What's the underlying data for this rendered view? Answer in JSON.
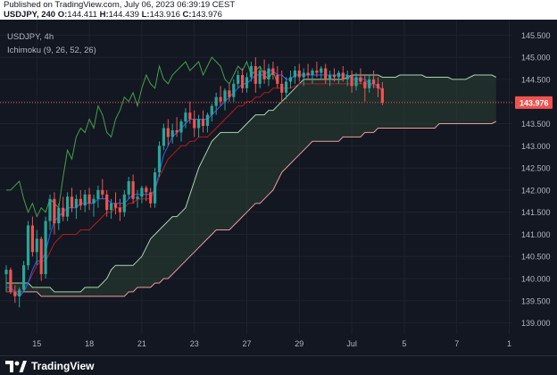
{
  "header": {
    "published": "Published on TradingView.com, July 06, 2023 06:39:19 CEST",
    "symbol": "USDJPY, 240",
    "o_label": "O:",
    "o": "144.411",
    "h_label": "H:",
    "h": "144.439",
    "l_label": "L:",
    "l": "143.916",
    "c_label": "C:",
    "c": "143.976"
  },
  "legend": {
    "symbol_interval": "USDJPY, 4h",
    "indicator": "Ichimoku (9, 26, 52, 26)"
  },
  "brand": {
    "name": "TradingView"
  },
  "colors": {
    "background": "#131722",
    "up": "#26a69a",
    "down": "#ef5350",
    "conversion": "#2962ff",
    "base": "#b71c1c",
    "lagging": "#43a047",
    "span_a": "#a5d6a7",
    "span_b": "#ef9a9a",
    "price_tag": "#ef5350"
  },
  "chart_data": {
    "type": "candlestick",
    "title": "USDJPY, 4h",
    "last_price": "143.976",
    "y_ticks": [
      "145.500",
      "145.000",
      "144.500",
      "144.000",
      "143.500",
      "143.000",
      "142.500",
      "142.000",
      "141.500",
      "141.000",
      "140.500",
      "140.000",
      "139.500",
      "139.000"
    ],
    "ylim": [
      138.75,
      145.85
    ],
    "x_ticks": [
      {
        "label": "15",
        "bar": 7
      },
      {
        "label": "18",
        "bar": 19
      },
      {
        "label": "21",
        "bar": 31
      },
      {
        "label": "23",
        "bar": 43
      },
      {
        "label": "27",
        "bar": 55
      },
      {
        "label": "29",
        "bar": 67
      },
      {
        "label": "Jul",
        "bar": 79
      },
      {
        "label": "5",
        "bar": 91
      },
      {
        "label": "7",
        "bar": 103
      },
      {
        "label": "1",
        "bar": 115
      }
    ],
    "grid": true,
    "candles": [
      [
        140.1,
        140.3,
        139.7,
        140.2
      ],
      [
        140.2,
        140.25,
        139.65,
        139.7
      ],
      [
        139.7,
        139.85,
        139.45,
        139.6
      ],
      [
        139.6,
        139.8,
        139.35,
        139.75
      ],
      [
        139.75,
        140.4,
        139.7,
        140.3
      ],
      [
        140.3,
        141.3,
        140.2,
        141.2
      ],
      [
        141.2,
        141.4,
        140.5,
        140.6
      ],
      [
        140.6,
        141.1,
        140.3,
        140.9
      ],
      [
        140.9,
        140.95,
        139.95,
        140.1
      ],
      [
        140.1,
        141.4,
        140.0,
        141.3
      ],
      [
        141.3,
        141.9,
        141.1,
        141.8
      ],
      [
        141.8,
        141.95,
        141.0,
        141.25
      ],
      [
        141.25,
        141.7,
        141.1,
        141.6
      ],
      [
        141.6,
        141.85,
        141.3,
        141.4
      ],
      [
        141.4,
        141.95,
        141.3,
        141.85
      ],
      [
        141.85,
        142.05,
        141.5,
        141.6
      ],
      [
        141.6,
        141.9,
        141.35,
        141.8
      ],
      [
        141.8,
        142.0,
        141.55,
        141.65
      ],
      [
        141.65,
        142.0,
        141.5,
        141.9
      ],
      [
        141.9,
        142.05,
        141.55,
        141.7
      ],
      [
        141.7,
        141.9,
        141.4,
        141.8
      ],
      [
        141.8,
        142.1,
        141.6,
        142.0
      ],
      [
        142.0,
        142.25,
        141.8,
        141.9
      ],
      [
        141.9,
        142.0,
        141.4,
        141.55
      ],
      [
        141.55,
        141.8,
        141.35,
        141.7
      ],
      [
        141.7,
        141.95,
        141.45,
        141.6
      ],
      [
        141.6,
        141.8,
        141.3,
        141.5
      ],
      [
        141.5,
        142.0,
        141.4,
        141.9
      ],
      [
        141.9,
        142.3,
        141.8,
        142.2
      ],
      [
        142.2,
        142.35,
        141.7,
        141.8
      ],
      [
        141.8,
        142.0,
        141.6,
        141.85
      ],
      [
        141.85,
        142.1,
        141.7,
        142.05
      ],
      [
        142.05,
        142.1,
        141.75,
        141.95
      ],
      [
        141.95,
        142.05,
        141.6,
        141.7
      ],
      [
        141.7,
        142.5,
        141.6,
        142.4
      ],
      [
        142.4,
        143.1,
        142.3,
        143.0
      ],
      [
        143.0,
        143.5,
        142.9,
        143.4
      ],
      [
        143.4,
        143.6,
        143.0,
        143.2
      ],
      [
        143.2,
        143.5,
        143.05,
        143.35
      ],
      [
        143.35,
        143.65,
        143.2,
        143.3
      ],
      [
        143.3,
        143.6,
        143.1,
        143.55
      ],
      [
        143.55,
        143.85,
        143.4,
        143.75
      ],
      [
        143.75,
        144.0,
        143.5,
        143.6
      ],
      [
        143.6,
        143.8,
        143.2,
        143.4
      ],
      [
        143.4,
        143.7,
        143.2,
        143.6
      ],
      [
        143.6,
        143.8,
        143.3,
        143.45
      ],
      [
        143.45,
        143.75,
        143.3,
        143.7
      ],
      [
        143.7,
        143.95,
        143.55,
        143.9
      ],
      [
        143.9,
        144.2,
        143.7,
        144.1
      ],
      [
        144.1,
        144.35,
        143.9,
        144.0
      ],
      [
        144.0,
        144.3,
        143.8,
        144.25
      ],
      [
        144.25,
        144.4,
        144.0,
        144.1
      ],
      [
        144.1,
        144.5,
        144.0,
        144.4
      ],
      [
        144.4,
        144.7,
        144.3,
        144.6
      ],
      [
        144.6,
        144.75,
        144.2,
        144.3
      ],
      [
        144.3,
        144.65,
        144.2,
        144.55
      ],
      [
        144.55,
        144.9,
        144.45,
        144.8
      ],
      [
        144.8,
        145.0,
        144.2,
        144.4
      ],
      [
        144.4,
        144.8,
        144.3,
        144.7
      ],
      [
        144.7,
        144.95,
        144.4,
        144.5
      ],
      [
        144.5,
        144.85,
        144.35,
        144.75
      ],
      [
        144.75,
        144.9,
        144.5,
        144.6
      ],
      [
        144.6,
        144.8,
        144.3,
        144.4
      ],
      [
        144.4,
        144.7,
        144.0,
        144.2
      ],
      [
        144.2,
        144.55,
        144.05,
        144.45
      ],
      [
        144.45,
        144.7,
        144.3,
        144.55
      ],
      [
        144.55,
        144.8,
        144.4,
        144.7
      ],
      [
        144.7,
        144.85,
        144.45,
        144.55
      ],
      [
        144.55,
        144.75,
        144.35,
        144.65
      ],
      [
        144.65,
        144.85,
        144.5,
        144.6
      ],
      [
        144.6,
        144.75,
        144.4,
        144.7
      ],
      [
        144.7,
        144.9,
        144.55,
        144.65
      ],
      [
        144.65,
        144.8,
        144.5,
        144.75
      ],
      [
        144.75,
        144.85,
        144.4,
        144.5
      ],
      [
        144.5,
        144.7,
        144.35,
        144.6
      ],
      [
        144.6,
        144.75,
        144.45,
        144.55
      ],
      [
        144.55,
        144.7,
        144.4,
        144.65
      ],
      [
        144.65,
        144.8,
        144.45,
        144.5
      ],
      [
        144.5,
        144.7,
        144.35,
        144.6
      ],
      [
        144.6,
        144.7,
        144.2,
        144.35
      ],
      [
        144.35,
        144.65,
        144.25,
        144.55
      ],
      [
        144.55,
        144.75,
        144.4,
        144.45
      ],
      [
        144.45,
        144.6,
        144.0,
        144.3
      ],
      [
        144.3,
        144.6,
        144.2,
        144.5
      ],
      [
        144.5,
        144.7,
        144.3,
        144.4
      ],
      [
        144.4,
        144.55,
        144.1,
        144.3
      ],
      [
        144.3,
        144.439,
        143.916,
        143.976
      ]
    ],
    "series": [
      {
        "name": "conversion",
        "start": 0,
        "values": [
          139.8,
          139.8,
          139.7,
          139.6,
          139.7,
          139.9,
          140.2,
          140.4,
          140.4,
          140.6,
          141.0,
          141.3,
          141.4,
          141.5,
          141.6,
          141.6,
          141.6,
          141.7,
          141.7,
          141.7,
          141.7,
          141.8,
          141.8,
          141.8,
          141.7,
          141.7,
          141.7,
          141.7,
          141.8,
          141.9,
          141.9,
          141.9,
          141.9,
          141.9,
          142.0,
          142.4,
          142.8,
          143.0,
          143.2,
          143.3,
          143.4,
          143.5,
          143.6,
          143.6,
          143.6,
          143.6,
          143.6,
          143.7,
          143.8,
          143.9,
          144.0,
          144.1,
          144.2,
          144.3,
          144.4,
          144.4,
          144.5,
          144.6,
          144.6,
          144.6,
          144.7,
          144.7,
          144.6,
          144.6,
          144.5,
          144.5,
          144.6,
          144.6,
          144.6,
          144.6,
          144.6,
          144.6,
          144.6,
          144.6,
          144.6,
          144.6,
          144.6,
          144.6,
          144.6,
          144.5,
          144.5,
          144.5,
          144.5,
          144.4,
          144.4,
          144.35,
          144.25
        ]
      },
      {
        "name": "base",
        "start": 0,
        "values": [
          139.7,
          139.7,
          139.7,
          139.7,
          139.7,
          139.9,
          140.1,
          140.3,
          140.4,
          140.4,
          140.6,
          140.8,
          140.9,
          141.0,
          141.0,
          141.0,
          141.0,
          141.1,
          141.1,
          141.1,
          141.2,
          141.3,
          141.4,
          141.5,
          141.5,
          141.6,
          141.6,
          141.6,
          141.7,
          141.7,
          141.8,
          141.8,
          141.8,
          141.8,
          142.0,
          142.3,
          142.5,
          142.7,
          142.8,
          142.9,
          143.0,
          143.0,
          143.1,
          143.1,
          143.2,
          143.2,
          143.2,
          143.3,
          143.4,
          143.5,
          143.6,
          143.7,
          143.8,
          143.9,
          143.9,
          144.0,
          144.0,
          144.1,
          144.1,
          144.2,
          144.2,
          144.3,
          144.3,
          144.3,
          144.3,
          144.3,
          144.35,
          144.4,
          144.4,
          144.4,
          144.4,
          144.4,
          144.4,
          144.4,
          144.4,
          144.4,
          144.4,
          144.4,
          144.4,
          144.4,
          144.4,
          144.4,
          144.4,
          144.4,
          144.35,
          144.3,
          144.25
        ]
      },
      {
        "name": "lagging",
        "start": 0,
        "values": [
          142.0,
          142.0,
          142.1,
          142.2,
          141.8,
          141.5,
          141.7,
          141.4,
          141.6,
          141.5,
          141.8,
          141.7,
          141.6,
          142.3,
          142.9,
          142.7,
          143.2,
          143.4,
          143.3,
          143.6,
          143.4,
          143.9,
          143.7,
          143.3,
          143.2,
          143.6,
          143.8,
          144.1,
          144.0,
          144.2,
          143.9,
          144.3,
          144.6,
          144.4,
          144.3,
          144.8,
          144.5,
          144.4,
          144.6,
          144.7,
          144.8,
          144.9,
          144.7,
          144.8,
          144.9,
          144.6,
          144.8,
          145.0,
          144.9,
          144.8,
          144.5,
          144.4,
          144.6,
          144.8,
          144.7,
          144.9,
          144.6,
          144.7,
          144.8,
          144.6,
          144.5,
          144.7,
          144.4
        ]
      },
      {
        "name": "span_a",
        "start": 0,
        "values": [
          139.9,
          139.9,
          139.9,
          139.9,
          139.9,
          139.9,
          139.8,
          139.8,
          139.8,
          139.8,
          139.8,
          139.7,
          139.7,
          139.7,
          139.7,
          139.7,
          139.7,
          139.7,
          139.8,
          139.8,
          139.8,
          139.8,
          139.9,
          140.0,
          140.2,
          140.3,
          140.3,
          140.3,
          140.3,
          140.3,
          140.4,
          140.5,
          140.7,
          140.9,
          141.0,
          141.1,
          141.2,
          141.3,
          141.4,
          141.4,
          141.5,
          141.6,
          141.9,
          142.2,
          142.5,
          142.7,
          142.9,
          143.1,
          143.2,
          143.3,
          143.3,
          143.3,
          143.3,
          143.3,
          143.4,
          143.5,
          143.6,
          143.7,
          143.7,
          143.7,
          143.8,
          143.8,
          143.9,
          144.0,
          144.1,
          144.2,
          144.3,
          144.4,
          144.5,
          144.5,
          144.5,
          144.5,
          144.5,
          144.5,
          144.5,
          144.5,
          144.5,
          144.5,
          144.55,
          144.6,
          144.6,
          144.6,
          144.6,
          144.6,
          144.6,
          144.6,
          144.55,
          144.55,
          144.55,
          144.55,
          144.6,
          144.6,
          144.6,
          144.6,
          144.6,
          144.6,
          144.55,
          144.55,
          144.55,
          144.55,
          144.55,
          144.55,
          144.5,
          144.5,
          144.5,
          144.5,
          144.55,
          144.6,
          144.6,
          144.6,
          144.6,
          144.6,
          144.55
        ]
      },
      {
        "name": "span_b",
        "start": 0,
        "values": [
          139.7,
          139.7,
          139.7,
          139.7,
          139.7,
          139.7,
          139.7,
          139.7,
          139.6,
          139.6,
          139.6,
          139.6,
          139.6,
          139.6,
          139.6,
          139.6,
          139.6,
          139.6,
          139.6,
          139.6,
          139.6,
          139.6,
          139.6,
          139.6,
          139.6,
          139.6,
          139.6,
          139.6,
          139.7,
          139.7,
          139.8,
          139.8,
          139.8,
          139.8,
          139.9,
          139.9,
          140.0,
          140.0,
          140.1,
          140.2,
          140.3,
          140.4,
          140.5,
          140.6,
          140.7,
          140.8,
          140.9,
          141.0,
          141.1,
          141.1,
          141.1,
          141.1,
          141.2,
          141.3,
          141.4,
          141.5,
          141.6,
          141.7,
          141.7,
          141.8,
          141.9,
          142.0,
          142.2,
          142.4,
          142.5,
          142.6,
          142.7,
          142.8,
          142.9,
          143.0,
          143.1,
          143.1,
          143.1,
          143.1,
          143.1,
          143.1,
          143.1,
          143.2,
          143.2,
          143.2,
          143.2,
          143.2,
          143.3,
          143.3,
          143.3,
          143.4,
          143.4,
          143.4,
          143.4,
          143.4,
          143.4,
          143.4,
          143.4,
          143.4,
          143.4,
          143.4,
          143.4,
          143.4,
          143.4,
          143.5,
          143.5,
          143.5,
          143.5,
          143.5,
          143.5,
          143.5,
          143.5,
          143.5,
          143.5,
          143.5,
          143.5,
          143.5,
          143.55
        ]
      }
    ]
  }
}
